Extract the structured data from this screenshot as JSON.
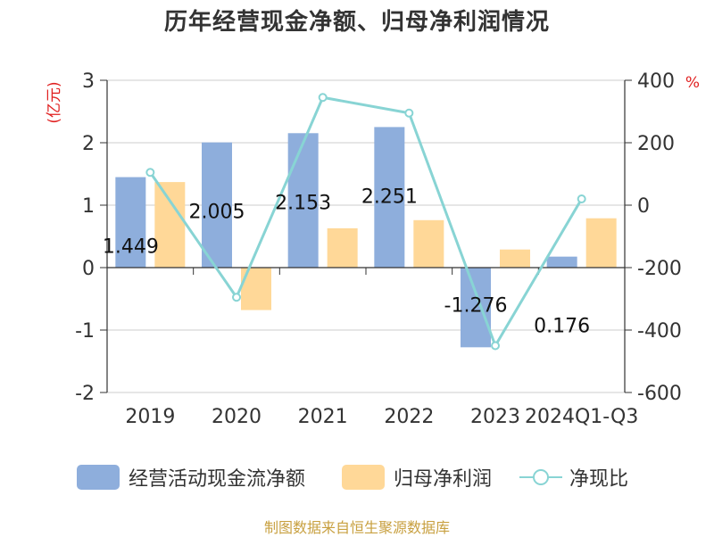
{
  "chart_data": {
    "type": "bar",
    "title": "历年经营现金净额、归母净利润情况",
    "categories": [
      "2019",
      "2020",
      "2021",
      "2022",
      "2023",
      "2024Q1-Q3"
    ],
    "series": [
      {
        "name": "经营活动现金流净额",
        "type": "bar",
        "axis": "left",
        "color": "#8eaedc",
        "values": [
          1.449,
          2.005,
          2.153,
          2.251,
          -1.276,
          0.176
        ]
      },
      {
        "name": "归母净利润",
        "type": "bar",
        "axis": "left",
        "color": "#ffd898",
        "values": [
          1.37,
          -0.68,
          0.63,
          0.76,
          0.29,
          0.79
        ]
      },
      {
        "name": "净现比",
        "type": "line",
        "axis": "right",
        "color": "#88d4d4",
        "values": [
          105,
          -295,
          345,
          295,
          -450,
          20
        ]
      }
    ],
    "left_axis": {
      "unit": "(亿元)",
      "ylim": [
        -2,
        3
      ],
      "ticks": [
        3,
        2,
        1,
        0,
        -1,
        -2
      ]
    },
    "right_axis": {
      "unit": "%",
      "ylim": [
        -600,
        400
      ],
      "ticks": [
        400,
        200,
        0,
        -200,
        -400,
        -600
      ]
    },
    "data_labels": [
      "1.449",
      "2.005",
      "2.153",
      "2.251",
      "-1.276",
      "0.176"
    ],
    "legend_position": "bottom",
    "grid": true
  },
  "source": "制图数据来自恒生聚源数据库"
}
